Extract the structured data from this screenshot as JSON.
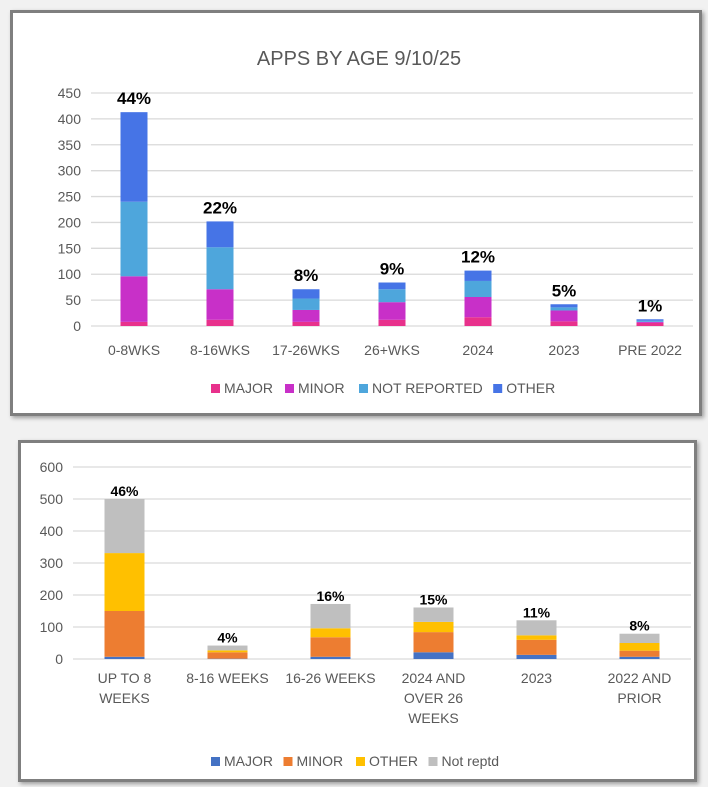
{
  "chart_data": [
    {
      "type": "bar",
      "stacked": true,
      "title": "APPS BY AGE 9/10/25",
      "xlabel": "",
      "ylabel": "",
      "ylim": [
        0,
        450
      ],
      "yticks": [
        0,
        50,
        100,
        150,
        200,
        250,
        300,
        350,
        400,
        450
      ],
      "grid": true,
      "legend_position": "bottom",
      "categories": [
        "0-8WKS",
        "8-16WKS",
        "17-26WKS",
        "26+WKS",
        "2024",
        "2023",
        "PRE 2022"
      ],
      "data_labels": [
        "44%",
        "22%",
        "8%",
        "9%",
        "12%",
        "5%",
        "1%"
      ],
      "series": [
        {
          "name": "MAJOR",
          "color": "#e8318c",
          "values": [
            8,
            12,
            8,
            12,
            17,
            9,
            6
          ]
        },
        {
          "name": "MINOR",
          "color": "#c830c8",
          "values": [
            88,
            59,
            23,
            34,
            39,
            21,
            2
          ]
        },
        {
          "name": "NOT REPORTED",
          "color": "#4ea6dc",
          "values": [
            144,
            81,
            22,
            25,
            31,
            6,
            2
          ]
        },
        {
          "name": "OTHER",
          "color": "#4674e6",
          "values": [
            173,
            50,
            18,
            13,
            20,
            6,
            3
          ]
        }
      ]
    },
    {
      "type": "bar",
      "stacked": true,
      "title": "",
      "xlabel": "",
      "ylabel": "",
      "ylim": [
        0,
        600
      ],
      "yticks": [
        0,
        100,
        200,
        300,
        400,
        500,
        600
      ],
      "grid": true,
      "legend_position": "bottom",
      "categories": [
        [
          "UP TO 8",
          "WEEKS"
        ],
        [
          "8-16 WEEKS"
        ],
        [
          "16-26 WEEKS"
        ],
        [
          "2024 AND",
          "OVER 26",
          "WEEKS"
        ],
        [
          "2023"
        ],
        [
          "2022 AND",
          "PRIOR"
        ]
      ],
      "data_labels": [
        "46%",
        "4%",
        "16%",
        "15%",
        "11%",
        "8%"
      ],
      "series": [
        {
          "name": "MAJOR",
          "color": "#4472c4",
          "values": [
            7,
            1,
            7,
            21,
            13,
            7
          ]
        },
        {
          "name": "MINOR",
          "color": "#ed7d31",
          "values": [
            143,
            20,
            61,
            63,
            47,
            19
          ]
        },
        {
          "name": "OTHER",
          "color": "#ffc000",
          "values": [
            181,
            6,
            28,
            32,
            14,
            24
          ]
        },
        {
          "name": "Not reptd",
          "color": "#bfbfbf",
          "values": [
            169,
            15,
            76,
            45,
            47,
            29
          ]
        }
      ]
    }
  ]
}
